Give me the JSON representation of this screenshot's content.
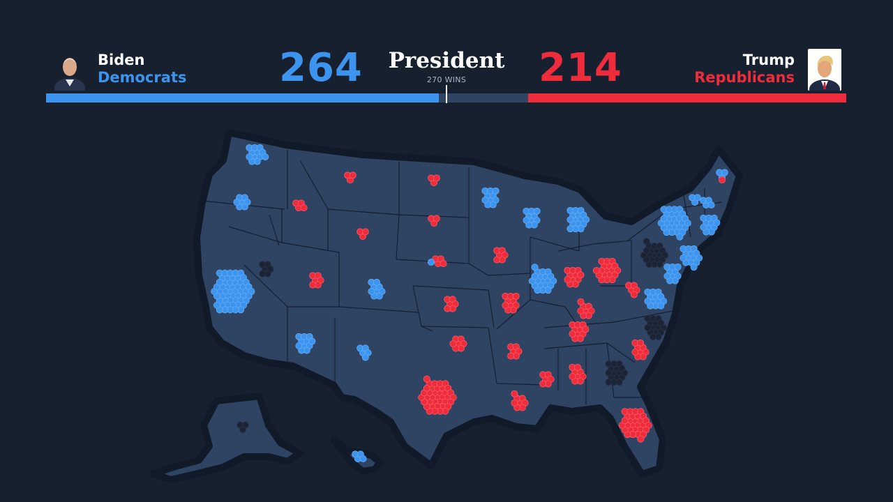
{
  "race": {
    "title": "President",
    "subtitle": "270 WINS",
    "threshold": 270,
    "total": 538
  },
  "colors": {
    "dem": "#3d94ef",
    "rep": "#ee2c3c",
    "undecided": "#1b2434",
    "land": "#2f4363",
    "background": "#17202f"
  },
  "dem": {
    "name": "Biden",
    "party": "Democrats",
    "votes": "264",
    "avatar_icon": "candidate-portrait"
  },
  "rep": {
    "name": "Trump",
    "party": "Republicans",
    "votes": "214",
    "avatar_icon": "candidate-portrait"
  },
  "states": [
    {
      "code": "WA",
      "party": "dem",
      "ev": 12
    },
    {
      "code": "OR",
      "party": "dem",
      "ev": 7
    },
    {
      "code": "CA",
      "party": "dem",
      "ev": 55
    },
    {
      "code": "NV",
      "party": "undecided",
      "ev": 6
    },
    {
      "code": "ID",
      "party": "rep",
      "ev": 4
    },
    {
      "code": "MT",
      "party": "rep",
      "ev": 3
    },
    {
      "code": "WY",
      "party": "rep",
      "ev": 3
    },
    {
      "code": "UT",
      "party": "rep",
      "ev": 6
    },
    {
      "code": "CO",
      "party": "dem",
      "ev": 9
    },
    {
      "code": "AZ",
      "party": "dem",
      "ev": 11
    },
    {
      "code": "NM",
      "party": "dem",
      "ev": 5
    },
    {
      "code": "ND",
      "party": "rep",
      "ev": 3
    },
    {
      "code": "SD",
      "party": "rep",
      "ev": 3
    },
    {
      "code": "NE",
      "party": "rep",
      "ev": 4
    },
    {
      "code": "NE-2",
      "party": "dem",
      "ev": 1
    },
    {
      "code": "KS",
      "party": "rep",
      "ev": 6
    },
    {
      "code": "OK",
      "party": "rep",
      "ev": 7
    },
    {
      "code": "TX",
      "party": "rep",
      "ev": 38
    },
    {
      "code": "MN",
      "party": "dem",
      "ev": 10
    },
    {
      "code": "IA",
      "party": "rep",
      "ev": 6
    },
    {
      "code": "MO",
      "party": "rep",
      "ev": 10
    },
    {
      "code": "AR",
      "party": "rep",
      "ev": 6
    },
    {
      "code": "LA",
      "party": "rep",
      "ev": 8
    },
    {
      "code": "WI",
      "party": "dem",
      "ev": 10
    },
    {
      "code": "IL",
      "party": "dem",
      "ev": 20
    },
    {
      "code": "MI",
      "party": "dem",
      "ev": 16
    },
    {
      "code": "IN",
      "party": "rep",
      "ev": 11
    },
    {
      "code": "OH",
      "party": "rep",
      "ev": 18
    },
    {
      "code": "KY",
      "party": "rep",
      "ev": 8
    },
    {
      "code": "TN",
      "party": "rep",
      "ev": 11
    },
    {
      "code": "MS",
      "party": "rep",
      "ev": 6
    },
    {
      "code": "AL",
      "party": "rep",
      "ev": 9
    },
    {
      "code": "GA",
      "party": "undecided",
      "ev": 16
    },
    {
      "code": "FL",
      "party": "rep",
      "ev": 29
    },
    {
      "code": "SC",
      "party": "rep",
      "ev": 9
    },
    {
      "code": "NC",
      "party": "undecided",
      "ev": 15
    },
    {
      "code": "VA",
      "party": "dem",
      "ev": 13
    },
    {
      "code": "WV",
      "party": "rep",
      "ev": 5
    },
    {
      "code": "PA",
      "party": "undecided",
      "ev": 20
    },
    {
      "code": "NY",
      "party": "dem",
      "ev": 29
    },
    {
      "code": "VT",
      "party": "dem",
      "ev": 3
    },
    {
      "code": "NH",
      "party": "dem",
      "ev": 4
    },
    {
      "code": "ME",
      "party": "dem",
      "ev": 3
    },
    {
      "code": "ME-2",
      "party": "rep",
      "ev": 1
    },
    {
      "code": "MA",
      "party": "dem",
      "ev": 11
    },
    {
      "code": "NJ",
      "party": "dem",
      "ev": 14
    },
    {
      "code": "MD",
      "party": "dem",
      "ev": 10
    },
    {
      "code": "AK",
      "party": "undecided",
      "ev": 3
    },
    {
      "code": "HI",
      "party": "dem",
      "ev": 4
    }
  ]
}
